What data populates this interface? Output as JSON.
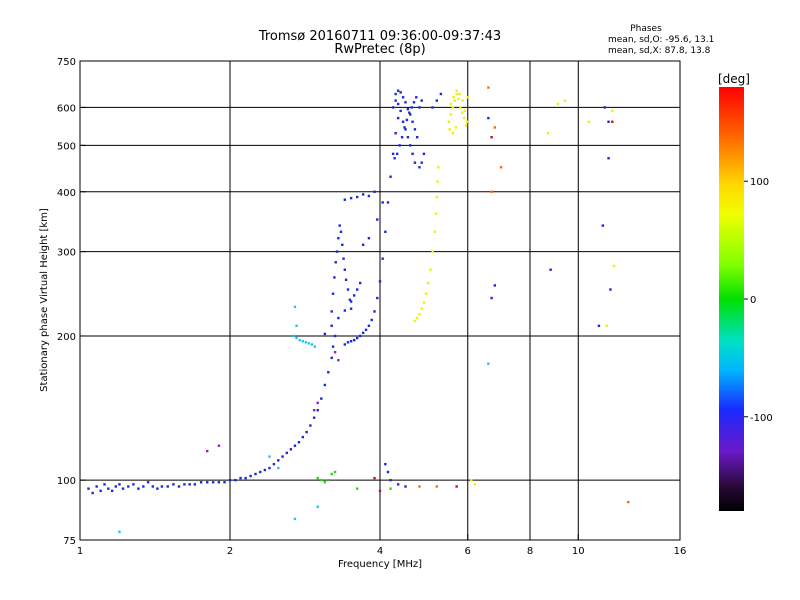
{
  "chart_data": {
    "type": "scatter",
    "title": "Tromsø 20160711 09:36:00-09:37:43",
    "subtitle": "RwPretec (8p)",
    "xlabel": "Frequency [MHz]",
    "ylabel": "Stationary phase Virtual Height [km]",
    "x_scale": "log",
    "y_scale": "log",
    "xlim": [
      1,
      16
    ],
    "ylim": [
      75,
      750
    ],
    "x_ticks": [
      1,
      2,
      4,
      6,
      8,
      10,
      16
    ],
    "y_ticks": [
      75,
      100,
      200,
      300,
      400,
      500,
      600,
      750
    ],
    "x_gridlines": [
      2,
      4,
      6,
      8,
      10
    ],
    "y_gridlines": [
      100,
      200,
      300,
      400,
      500,
      600
    ],
    "grid": true,
    "stats": {
      "header": "Phases",
      "line_o": "mean, sd,O: -95.6, 13.1",
      "line_x": "mean, sd,X:  87.8, 13.8"
    },
    "colorbar": {
      "label": "[deg]",
      "range": [
        -180,
        180
      ],
      "ticks": [
        100,
        0,
        -100
      ],
      "tick_labels": [
        "100",
        "0",
        "-100"
      ],
      "placement": "right"
    },
    "series": [
      {
        "color": "#1a2ad8",
        "points": [
          [
            1.04,
            96
          ],
          [
            1.06,
            94
          ],
          [
            1.08,
            97
          ],
          [
            1.1,
            95
          ],
          [
            1.12,
            98
          ],
          [
            1.14,
            96
          ],
          [
            1.16,
            95
          ],
          [
            1.18,
            97
          ],
          [
            1.2,
            98
          ],
          [
            1.22,
            96
          ],
          [
            1.25,
            97
          ],
          [
            1.28,
            98
          ],
          [
            1.31,
            96
          ],
          [
            1.34,
            97
          ],
          [
            1.37,
            99
          ],
          [
            1.4,
            97
          ],
          [
            1.43,
            96
          ],
          [
            1.46,
            97
          ],
          [
            1.5,
            97
          ],
          [
            1.54,
            98
          ],
          [
            1.58,
            97
          ],
          [
            1.62,
            98
          ],
          [
            1.66,
            98
          ],
          [
            1.7,
            98
          ],
          [
            1.75,
            99
          ],
          [
            1.8,
            99
          ],
          [
            1.85,
            99
          ],
          [
            1.9,
            99
          ],
          [
            1.95,
            99
          ],
          [
            2.0,
            100
          ],
          [
            2.05,
            100
          ],
          [
            2.1,
            101
          ],
          [
            2.15,
            101
          ],
          [
            2.2,
            102
          ],
          [
            2.25,
            103
          ],
          [
            2.3,
            104
          ],
          [
            2.35,
            105
          ],
          [
            2.4,
            106
          ],
          [
            2.45,
            108
          ],
          [
            2.5,
            110
          ],
          [
            2.55,
            112
          ],
          [
            2.6,
            114
          ],
          [
            2.65,
            116
          ],
          [
            2.7,
            118
          ],
          [
            2.75,
            120
          ],
          [
            2.8,
            123
          ],
          [
            2.85,
            126
          ],
          [
            2.9,
            130
          ],
          [
            2.95,
            135
          ],
          [
            3.0,
            140
          ],
          [
            3.05,
            148
          ],
          [
            3.1,
            158
          ],
          [
            3.15,
            168
          ],
          [
            3.2,
            180
          ],
          [
            3.22,
            190
          ],
          [
            3.25,
            200
          ],
          [
            3.2,
            225
          ],
          [
            3.22,
            245
          ],
          [
            3.24,
            265
          ],
          [
            3.26,
            285
          ],
          [
            3.28,
            300
          ],
          [
            3.3,
            320
          ],
          [
            3.32,
            340
          ],
          [
            3.34,
            330
          ],
          [
            3.36,
            310
          ],
          [
            3.38,
            290
          ],
          [
            3.4,
            275
          ],
          [
            3.42,
            262
          ],
          [
            3.45,
            250
          ],
          [
            3.48,
            238
          ],
          [
            3.5,
            228
          ],
          [
            3.4,
            192
          ],
          [
            3.45,
            194
          ],
          [
            3.5,
            195
          ],
          [
            3.55,
            196
          ],
          [
            3.6,
            198
          ],
          [
            3.65,
            200
          ],
          [
            3.7,
            203
          ],
          [
            3.75,
            206
          ],
          [
            3.8,
            210
          ],
          [
            3.85,
            216
          ],
          [
            3.9,
            225
          ],
          [
            3.95,
            240
          ],
          [
            4.0,
            260
          ],
          [
            4.05,
            290
          ],
          [
            4.1,
            330
          ],
          [
            4.15,
            380
          ],
          [
            4.2,
            430
          ],
          [
            4.25,
            480
          ],
          [
            4.3,
            530
          ],
          [
            4.35,
            570
          ],
          [
            3.1,
            202
          ],
          [
            3.2,
            210
          ],
          [
            3.3,
            218
          ],
          [
            3.4,
            226
          ],
          [
            3.5,
            236
          ],
          [
            3.55,
            243
          ],
          [
            3.6,
            250
          ],
          [
            3.65,
            258
          ],
          [
            3.4,
            385
          ],
          [
            3.5,
            388
          ],
          [
            3.6,
            390
          ],
          [
            3.7,
            395
          ],
          [
            3.8,
            392
          ],
          [
            3.9,
            400
          ],
          [
            3.7,
            310
          ],
          [
            3.8,
            320
          ],
          [
            3.95,
            350
          ],
          [
            4.05,
            380
          ],
          [
            4.25,
            600
          ],
          [
            4.3,
            620
          ],
          [
            4.35,
            610
          ],
          [
            4.4,
            590
          ],
          [
            4.45,
            560
          ],
          [
            4.5,
            540
          ],
          [
            4.55,
            520
          ],
          [
            4.6,
            500
          ],
          [
            4.65,
            480
          ],
          [
            4.7,
            460
          ],
          [
            4.3,
            640
          ],
          [
            4.35,
            650
          ],
          [
            4.4,
            645
          ],
          [
            4.45,
            630
          ],
          [
            4.5,
            615
          ],
          [
            4.55,
            595
          ],
          [
            4.6,
            580
          ],
          [
            4.65,
            560
          ],
          [
            4.7,
            540
          ],
          [
            4.75,
            520
          ],
          [
            4.28,
            470
          ],
          [
            4.33,
            480
          ],
          [
            4.38,
            500
          ],
          [
            4.43,
            520
          ],
          [
            4.48,
            545
          ],
          [
            4.53,
            565
          ],
          [
            4.58,
            585
          ],
          [
            4.63,
            600
          ],
          [
            4.68,
            615
          ],
          [
            4.73,
            630
          ],
          [
            4.8,
            450
          ],
          [
            4.85,
            460
          ],
          [
            4.9,
            480
          ],
          [
            4.8,
            600
          ],
          [
            4.85,
            620
          ],
          [
            5.1,
            600
          ],
          [
            5.2,
            620
          ],
          [
            5.3,
            640
          ],
          [
            4.1,
            108
          ],
          [
            4.15,
            104
          ],
          [
            4.2,
            100
          ],
          [
            4.35,
            98
          ],
          [
            4.5,
            97
          ],
          [
            6.6,
            570
          ],
          [
            6.7,
            240
          ],
          [
            6.8,
            255
          ],
          [
            8.8,
            275
          ],
          [
            11.0,
            210
          ],
          [
            11.2,
            340
          ],
          [
            11.5,
            560
          ],
          [
            11.5,
            470
          ],
          [
            11.3,
            600
          ],
          [
            11.6,
            250
          ]
        ]
      },
      {
        "color": "#f0f000",
        "points": [
          [
            4.7,
            215
          ],
          [
            4.75,
            218
          ],
          [
            4.8,
            222
          ],
          [
            4.85,
            228
          ],
          [
            4.9,
            235
          ],
          [
            4.95,
            245
          ],
          [
            5.0,
            258
          ],
          [
            5.05,
            275
          ],
          [
            5.1,
            300
          ],
          [
            5.15,
            330
          ],
          [
            5.18,
            360
          ],
          [
            5.2,
            390
          ],
          [
            5.22,
            420
          ],
          [
            5.24,
            450
          ],
          [
            5.5,
            560
          ],
          [
            5.55,
            580
          ],
          [
            5.6,
            600
          ],
          [
            5.65,
            620
          ],
          [
            5.7,
            640
          ],
          [
            5.75,
            625
          ],
          [
            5.8,
            600
          ],
          [
            5.85,
            585
          ],
          [
            5.9,
            570
          ],
          [
            5.95,
            550
          ],
          [
            5.55,
            610
          ],
          [
            5.62,
            630
          ],
          [
            5.7,
            650
          ],
          [
            5.78,
            640
          ],
          [
            5.86,
            620
          ],
          [
            5.92,
            590
          ],
          [
            5.98,
            560
          ],
          [
            5.52,
            540
          ],
          [
            5.6,
            530
          ],
          [
            5.68,
            545
          ],
          [
            6.0,
            630
          ],
          [
            6.1,
            100
          ],
          [
            6.2,
            98
          ],
          [
            9.1,
            610
          ],
          [
            9.4,
            620
          ],
          [
            11.7,
            590
          ],
          [
            11.8,
            280
          ],
          [
            11.4,
            210
          ],
          [
            10.5,
            560
          ],
          [
            8.7,
            530
          ]
        ]
      },
      {
        "color": "#19c8ee",
        "points": [
          [
            2.68,
            200
          ],
          [
            2.72,
            198
          ],
          [
            2.76,
            196
          ],
          [
            2.8,
            195
          ],
          [
            2.84,
            194
          ],
          [
            2.88,
            193
          ],
          [
            2.92,
            192
          ],
          [
            2.96,
            190
          ],
          [
            2.7,
            230
          ],
          [
            2.72,
            210
          ],
          [
            3.0,
            88
          ],
          [
            2.7,
            83
          ],
          [
            6.6,
            175
          ],
          [
            1.2,
            78
          ],
          [
            2.4,
            112
          ],
          [
            2.5,
            106
          ]
        ]
      },
      {
        "color": "#2fd31b",
        "points": [
          [
            3.0,
            101
          ],
          [
            3.05,
            100
          ],
          [
            3.1,
            99
          ],
          [
            3.15,
            100
          ],
          [
            3.2,
            103
          ],
          [
            3.25,
            104
          ],
          [
            4.2,
            96
          ],
          [
            3.6,
            96
          ]
        ]
      },
      {
        "color": "#ff6a00",
        "points": [
          [
            6.6,
            660
          ],
          [
            6.8,
            545
          ],
          [
            7.0,
            450
          ],
          [
            6.7,
            400
          ],
          [
            12.6,
            90
          ],
          [
            4.8,
            97
          ],
          [
            5.2,
            97
          ]
        ]
      },
      {
        "color": "#cc1010",
        "points": [
          [
            6.7,
            520
          ],
          [
            11.7,
            560
          ],
          [
            5.7,
            97
          ],
          [
            3.9,
            101
          ],
          [
            4.0,
            95
          ]
        ]
      },
      {
        "color": "#9a1ac8",
        "points": [
          [
            3.25,
            185
          ],
          [
            3.3,
            178
          ],
          [
            3.0,
            145
          ],
          [
            2.95,
            140
          ],
          [
            1.8,
            115
          ],
          [
            1.9,
            118
          ]
        ]
      }
    ]
  }
}
